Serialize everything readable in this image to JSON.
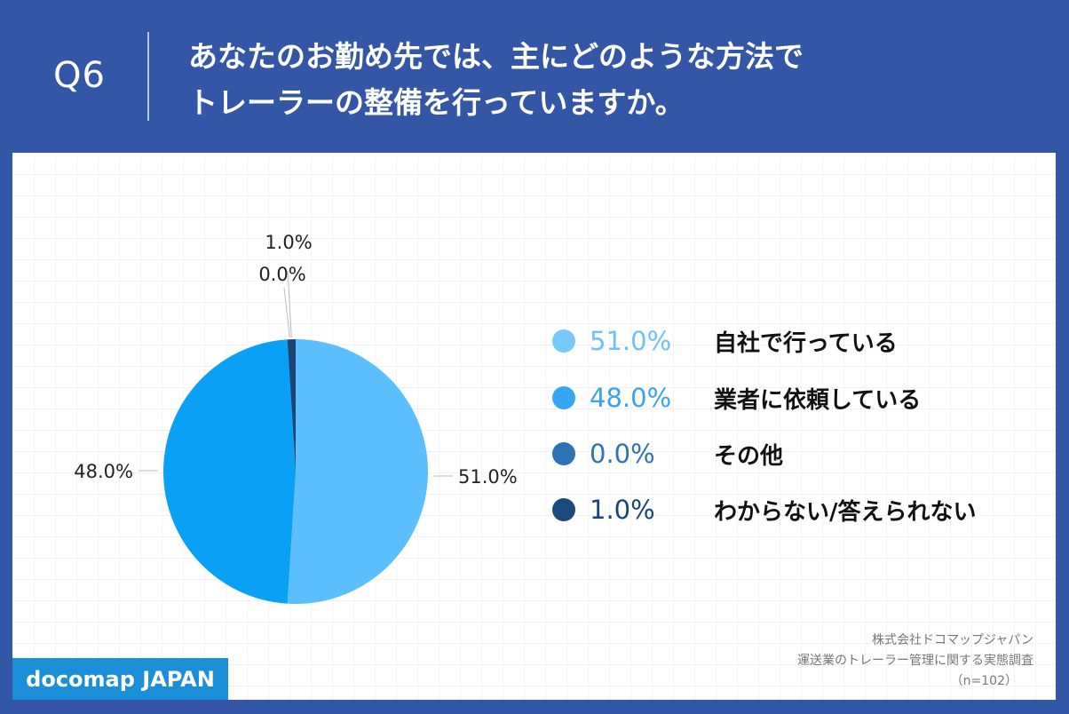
{
  "header": {
    "question_number": "Q6",
    "title_lines": [
      "あなたのお勤め先では、主にどのような方法で",
      "トレーラーの整備を行っていますか。"
    ]
  },
  "chart_data": {
    "type": "pie",
    "categories": [
      "自社で行っている",
      "業者に依頼している",
      "その他",
      "わからない/答えられない"
    ],
    "values": [
      51.0,
      48.0,
      0.0,
      1.0
    ],
    "value_labels": [
      "51.0%",
      "48.0%",
      "0.0%",
      "1.0%"
    ],
    "colors": [
      "#5bbffd",
      "#0aa0f5",
      "#2f72b8",
      "#1a4577"
    ],
    "legend_value_colors": [
      "#6cc2f7",
      "#3aa3ee",
      "#2f72b8",
      "#1a4577"
    ],
    "legend_dot_colors": [
      "#76c9fa",
      "#36a6f2",
      "#2d72b4",
      "#1a4a7e"
    ],
    "legend_placement": "right",
    "start_angle": "12 o'clock, clockwise"
  },
  "footnote": {
    "company": "株式会社ドコマップジャパン",
    "survey": "運送業のトレーラー管理に関する実態調査",
    "sample": "（n=102）"
  },
  "brand": {
    "label": "docomap JAPAN"
  }
}
